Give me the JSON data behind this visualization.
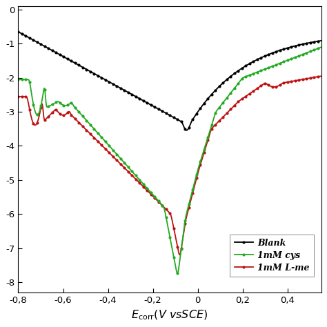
{
  "xlim": [
    -0.8,
    0.55
  ],
  "ylim": [
    -8.3,
    0.1
  ],
  "xticks": [
    -0.8,
    -0.6,
    -0.4,
    -0.2,
    0.0,
    0.2,
    0.4
  ],
  "yticks": [
    0,
    -1,
    -2,
    -3,
    -4,
    -5,
    -6,
    -7,
    -8
  ],
  "colors": {
    "blank": "#000000",
    "cys": "#22aa22",
    "lme": "#bb1111"
  },
  "legend": {
    "blank": "Blank",
    "cys": "1mM cys",
    "lme": "1mM L-me"
  },
  "xlabel": "E_corr(V vsSCE)",
  "marker_size": 2.0,
  "line_width": 1.3
}
